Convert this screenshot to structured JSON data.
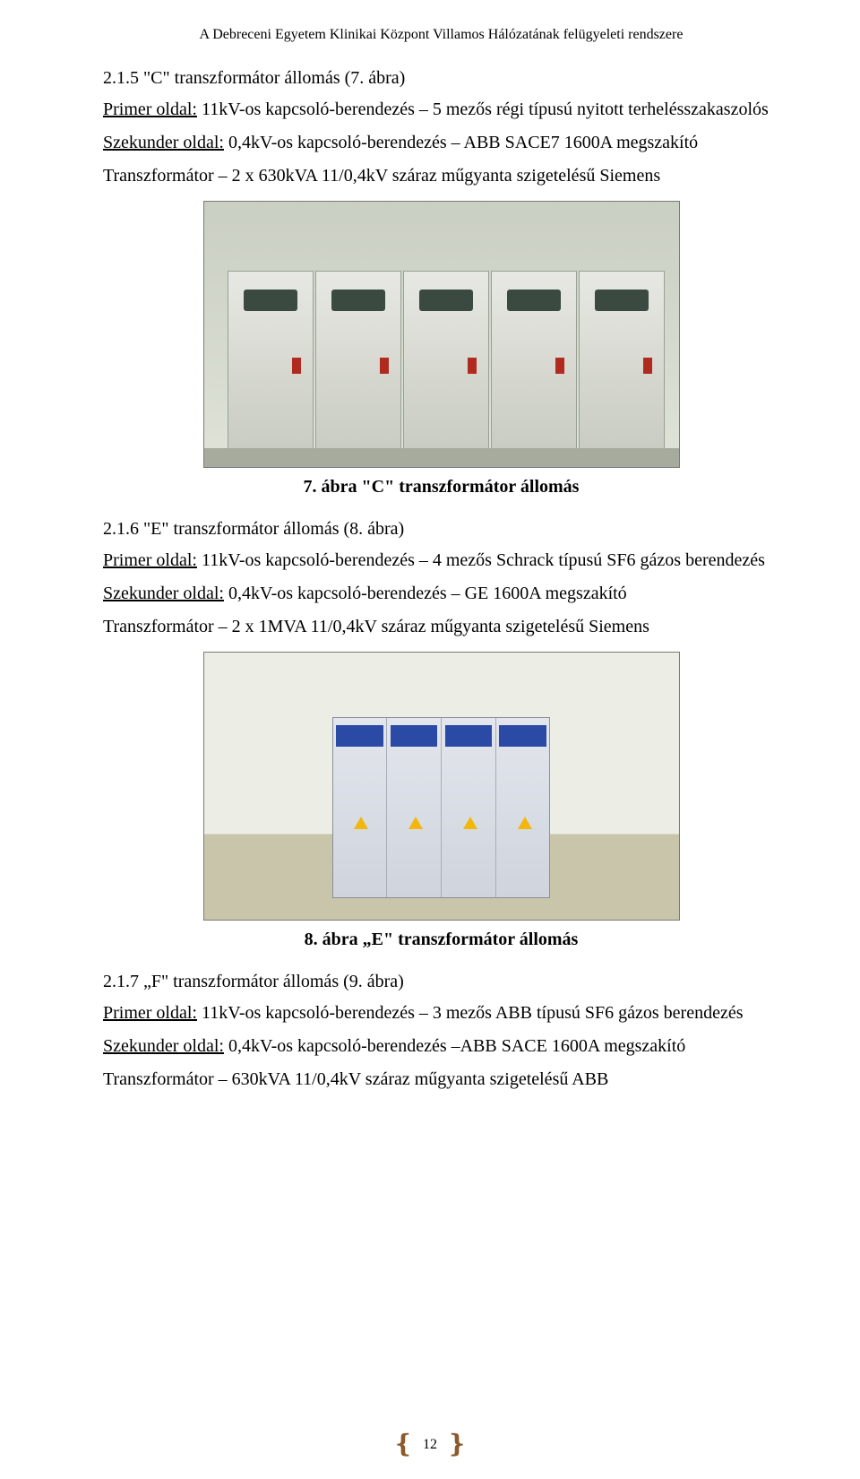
{
  "header": "A Debreceni Egyetem Klinikai Központ Villamos Hálózatának felügyeleti rendszere",
  "section1": {
    "title": "2.1.5 \"C\" transzformátor állomás (7. ábra)",
    "primer_label": "Primer oldal:",
    "primer_text": " 11kV-os kapcsoló-berendezés – 5 mezős régi típusú nyitott terhelésszakaszolós",
    "szekunder_label": "Szekunder oldal:",
    "szekunder_text": " 0,4kV-os kapcsoló-berendezés – ABB SACE7 1600A megszakító",
    "transformator": "Transzformátor – 2 x 630kVA 11/0,4kV száraz műgyanta szigetelésű Siemens"
  },
  "caption1": "7.  ábra \"C\" transzformátor állomás",
  "section2": {
    "title": "2.1.6 \"E\" transzformátor állomás (8. ábra)",
    "primer_label": "Primer oldal:",
    "primer_text": " 11kV-os kapcsoló-berendezés – 4 mezős Schrack típusú SF6 gázos berendezés",
    "szekunder_label": "Szekunder oldal:",
    "szekunder_text": " 0,4kV-os kapcsoló-berendezés – GE 1600A megszakító",
    "transformator": "Transzformátor – 2 x 1MVA 11/0,4kV száraz műgyanta szigetelésű Siemens"
  },
  "caption2": "8.  ábra „E\" transzformátor állomás",
  "section3": {
    "title": "2.1.7 „F\" transzformátor állomás (9. ábra)",
    "primer_label": "Primer oldal:",
    "primer_text": " 11kV-os kapcsoló-berendezés – 3 mezős ABB típusú SF6 gázos berendezés",
    "szekunder_label": "Szekunder oldal:",
    "szekunder_text": " 0,4kV-os kapcsoló-berendezés –ABB SACE 1600A megszakító",
    "transformator": "Transzformátor – 630kVA 11/0,4kV száraz műgyanta szigetelésű ABB"
  },
  "page_number": "12"
}
